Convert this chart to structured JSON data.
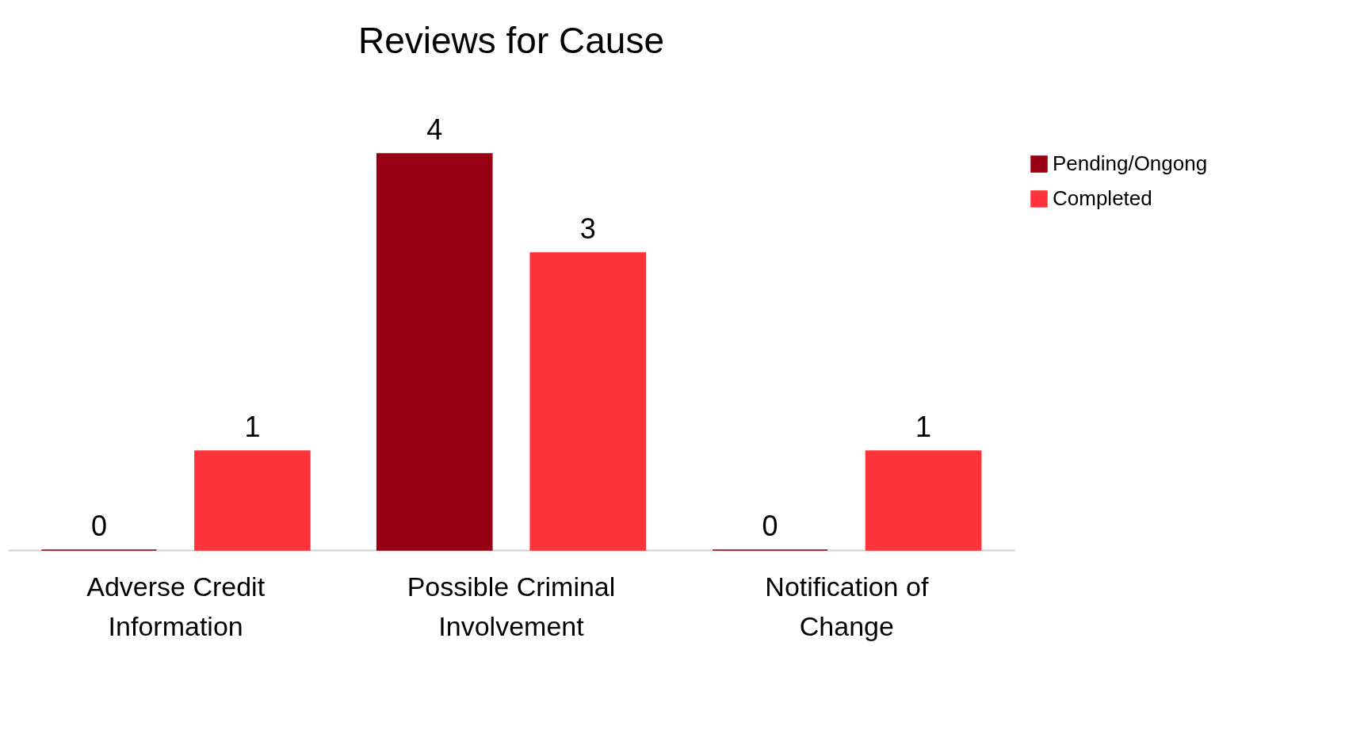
{
  "chart_data": {
    "type": "bar",
    "title": "Reviews for Cause",
    "categories": [
      "Adverse Credit Information",
      "Possible Criminal Involvement",
      "Notification of Change"
    ],
    "series": [
      {
        "name": "Pending/Ongong",
        "color": "#960012",
        "values": [
          0,
          4,
          0
        ]
      },
      {
        "name": "Completed",
        "color": "#ff333a",
        "values": [
          1,
          3,
          1
        ]
      }
    ],
    "data_labels": true,
    "legend": "right",
    "grid": false
  }
}
